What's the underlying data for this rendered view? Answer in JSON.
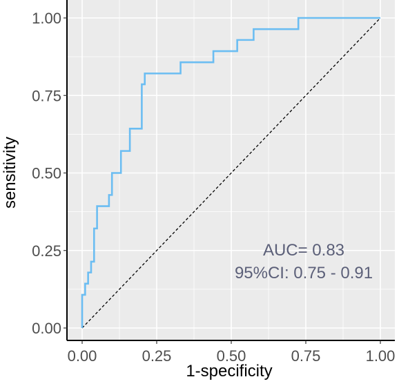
{
  "chart_data": {
    "type": "line",
    "title": "",
    "xlabel": "1-specificity",
    "ylabel": "sensitivity",
    "xlim": [
      0,
      1
    ],
    "ylim": [
      0,
      1
    ],
    "x_ticks": [
      "0.00",
      "0.25",
      "0.50",
      "0.75",
      "1.00"
    ],
    "y_ticks": [
      "0.00",
      "0.25",
      "0.50",
      "0.75",
      "1.00"
    ],
    "grid": true,
    "legend": "none",
    "series": [
      {
        "color": "#6bbdf2",
        "style": "step",
        "points": [
          [
            0.0,
            0.0
          ],
          [
            0.0,
            0.107
          ],
          [
            0.01,
            0.107
          ],
          [
            0.01,
            0.143
          ],
          [
            0.02,
            0.143
          ],
          [
            0.02,
            0.179
          ],
          [
            0.03,
            0.179
          ],
          [
            0.03,
            0.214
          ],
          [
            0.04,
            0.214
          ],
          [
            0.04,
            0.321
          ],
          [
            0.05,
            0.321
          ],
          [
            0.05,
            0.393
          ],
          [
            0.09,
            0.393
          ],
          [
            0.09,
            0.429
          ],
          [
            0.1,
            0.429
          ],
          [
            0.1,
            0.5
          ],
          [
            0.13,
            0.5
          ],
          [
            0.13,
            0.571
          ],
          [
            0.16,
            0.571
          ],
          [
            0.16,
            0.643
          ],
          [
            0.2,
            0.643
          ],
          [
            0.2,
            0.786
          ],
          [
            0.21,
            0.786
          ],
          [
            0.21,
            0.821
          ],
          [
            0.33,
            0.821
          ],
          [
            0.33,
            0.857
          ],
          [
            0.44,
            0.857
          ],
          [
            0.44,
            0.893
          ],
          [
            0.52,
            0.893
          ],
          [
            0.52,
            0.929
          ],
          [
            0.575,
            0.929
          ],
          [
            0.575,
            0.964
          ],
          [
            0.725,
            0.964
          ],
          [
            0.725,
            1.0
          ],
          [
            1.0,
            1.0
          ]
        ]
      }
    ],
    "reference_line": {
      "color": "#000000",
      "dashed": true,
      "points": [
        [
          0,
          0
        ],
        [
          1,
          1
        ]
      ]
    },
    "annotations": [
      {
        "text": "AUC= 0.83",
        "color": "#5b5f78"
      },
      {
        "text": "95%CI: 0.75 - 0.91",
        "color": "#5b5f78"
      }
    ],
    "colors": {
      "panel_background": "#ebebeb",
      "grid": "#ffffff",
      "axis": "#000000",
      "tick_label": "#4d4d4d"
    }
  }
}
